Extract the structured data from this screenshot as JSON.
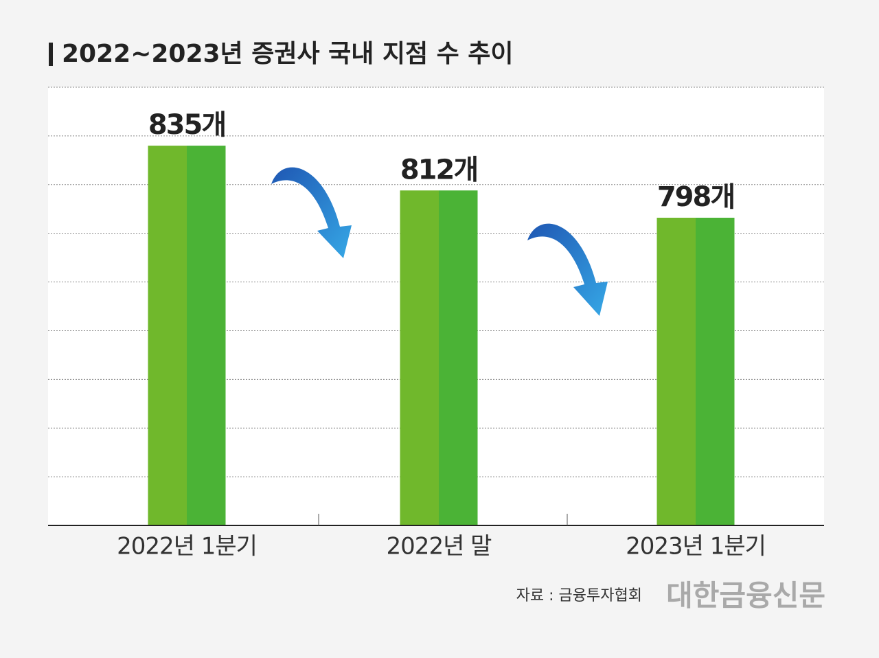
{
  "chart_data": {
    "type": "bar",
    "title": "2022~2023년 증권사 국내 지점 수 추이",
    "categories": [
      "2022년 1분기",
      "2022년 말",
      "2023년 1분기"
    ],
    "values": [
      835,
      812,
      798
    ],
    "value_labels": [
      "835개",
      "812개",
      "798개"
    ],
    "colors": [
      "#70b82c",
      "#4bb336"
    ],
    "ylim": [
      640,
      865
    ],
    "grid": true,
    "source": "자료 : 금융투자협회",
    "brand": "대한금융신문"
  }
}
